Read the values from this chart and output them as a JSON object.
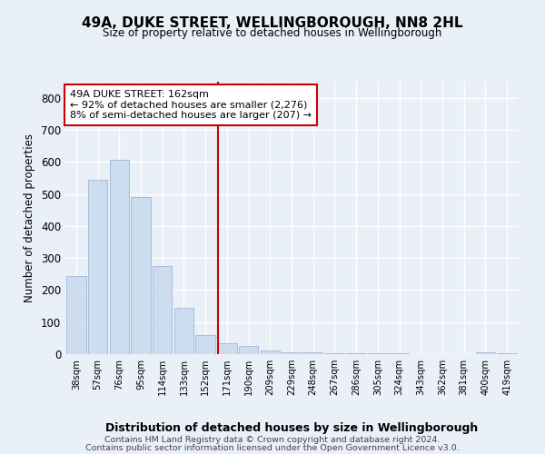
{
  "title": "49A, DUKE STREET, WELLINGBOROUGH, NN8 2HL",
  "subtitle": "Size of property relative to detached houses in Wellingborough",
  "xlabel": "Distribution of detached houses by size in Wellingborough",
  "ylabel": "Number of detached properties",
  "categories": [
    "38sqm",
    "57sqm",
    "76sqm",
    "95sqm",
    "114sqm",
    "133sqm",
    "152sqm",
    "171sqm",
    "190sqm",
    "209sqm",
    "229sqm",
    "248sqm",
    "267sqm",
    "286sqm",
    "305sqm",
    "324sqm",
    "343sqm",
    "362sqm",
    "381sqm",
    "400sqm",
    "419sqm"
  ],
  "values": [
    245,
    545,
    605,
    490,
    275,
    145,
    60,
    35,
    25,
    10,
    7,
    5,
    4,
    3,
    2,
    2,
    1,
    1,
    1,
    5,
    2
  ],
  "bar_color": "#ccddf0",
  "bar_edge_color": "#aabbdd",
  "annotation_label": "49A DUKE STREET: 162sqm",
  "annotation_line1": "← 92% of detached houses are smaller (2,276)",
  "annotation_line2": "8% of semi-detached houses are larger (207) →",
  "footer1": "Contains HM Land Registry data © Crown copyright and database right 2024.",
  "footer2": "Contains public sector information licensed under the Open Government Licence v3.0.",
  "bg_color": "#eaf0f8",
  "plot_bg_color": "#eaf0f8",
  "grid_color": "#ffffff",
  "line_color": "#cc0000",
  "line_x_index": 6.6,
  "ylim": [
    0,
    850
  ],
  "yticks": [
    0,
    100,
    200,
    300,
    400,
    500,
    600,
    700,
    800
  ]
}
